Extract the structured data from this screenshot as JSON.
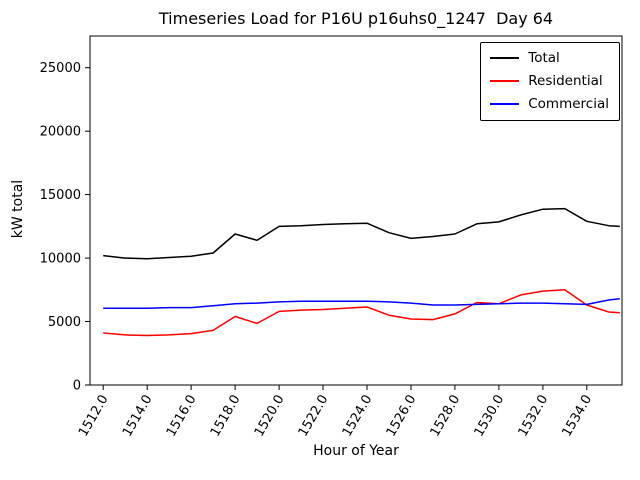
{
  "chart_data": {
    "type": "line",
    "title": "Timeseries Load for P16U p16uhs0_1247  Day 64",
    "xlabel": "Hour of Year",
    "ylabel": "kW total",
    "xlim": [
      1511.4,
      1535.6
    ],
    "ylim": [
      0,
      27500
    ],
    "x_ticks": [
      1512,
      1514,
      1516,
      1518,
      1520,
      1522,
      1524,
      1526,
      1528,
      1530,
      1532,
      1534
    ],
    "x_tick_labels": [
      "1512.0",
      "1514.0",
      "1516.0",
      "1518.0",
      "1520.0",
      "1522.0",
      "1524.0",
      "1526.0",
      "1528.0",
      "1530.0",
      "1532.0",
      "1534.0"
    ],
    "y_ticks": [
      0,
      5000,
      10000,
      15000,
      20000,
      25000
    ],
    "y_tick_labels": [
      "0",
      "5000",
      "10000",
      "15000",
      "20000",
      "25000"
    ],
    "grid": false,
    "legend_position": "upper right",
    "x": [
      1512,
      1513,
      1514,
      1515,
      1516,
      1517,
      1518,
      1519,
      1520,
      1521,
      1522,
      1523,
      1524,
      1525,
      1526,
      1527,
      1528,
      1529,
      1530,
      1531,
      1532,
      1533,
      1534,
      1535,
      1535.5
    ],
    "series": [
      {
        "name": "Total",
        "color": "#000000",
        "values": [
          10200,
          10000,
          9950,
          10050,
          10150,
          10400,
          11900,
          11400,
          12500,
          12550,
          12650,
          12700,
          12750,
          12000,
          11550,
          11700,
          11900,
          12700,
          12850,
          13400,
          13850,
          13900,
          12900,
          12550,
          12500
        ]
      },
      {
        "name": "Residential",
        "color": "#ff0000",
        "values": [
          4100,
          3950,
          3900,
          3950,
          4050,
          4300,
          5400,
          4850,
          5800,
          5900,
          5950,
          6050,
          6150,
          5500,
          5200,
          5150,
          5600,
          6500,
          6400,
          7100,
          7400,
          7500,
          6300,
          5750,
          5700
        ]
      },
      {
        "name": "Commercial",
        "color": "#0000ff",
        "values": [
          6050,
          6050,
          6050,
          6100,
          6100,
          6250,
          6400,
          6450,
          6550,
          6600,
          6600,
          6600,
          6600,
          6550,
          6450,
          6300,
          6300,
          6350,
          6400,
          6450,
          6450,
          6400,
          6350,
          6700,
          6800
        ]
      }
    ]
  }
}
